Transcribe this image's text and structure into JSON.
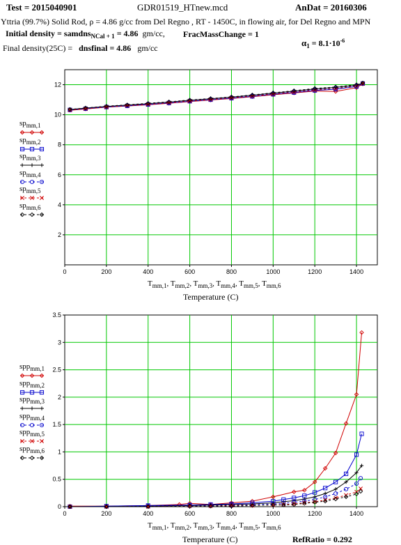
{
  "header": {
    "test_label": "Test = 2015040901",
    "file_name": "GDR01519_HTnew.mcd",
    "an_dat_label": "AnDat = 20160306",
    "description": "Yttria (99.7%) Solid Rod, ρ = 4.86 g/cc from Del Regno , RT - 1450C, in flowing air, for Del Regno and MPN",
    "initial_density_prefix": "Initial density = ",
    "initial_density_var": "samdns",
    "initial_density_sub": "NCal + 1",
    "initial_density_value": " = 4.86",
    "initial_density_unit": "gm/cc,",
    "frac_mass_change": "FracMassChange = 1",
    "final_density_prefix": "Final density(25C) = ",
    "final_density_var": "dnsfinal",
    "final_density_value": " = 4.86",
    "final_density_unit": "gm/cc",
    "alpha_label": "α",
    "alpha_sub": "1",
    "alpha_value": " = 8.1·10",
    "alpha_exp": "-6"
  },
  "footer": {
    "ref_ratio": "RefRatio = 0.292"
  },
  "chart_data": [
    {
      "type": "line",
      "xlabel": "Temperature (C)",
      "x_axis_expr": "T_mm,1, T_mm,2, T_mm,3, T_mm,4, T_mm,5, T_mm,6",
      "xlim": [
        0,
        1500
      ],
      "ylim": [
        0,
        13
      ],
      "xticks": [
        0,
        200,
        400,
        600,
        800,
        1000,
        1200,
        1400
      ],
      "yticks": [
        2,
        4,
        6,
        8,
        10,
        12
      ],
      "grid": true,
      "legend_position": "left",
      "series": [
        {
          "name": "sp mm,1",
          "color": "#d00000",
          "marker": "diamond",
          "dash": "",
          "x": [
            25,
            100,
            200,
            300,
            400,
            500,
            600,
            700,
            800,
            900,
            1000,
            1100,
            1200,
            1300,
            1400,
            1430
          ],
          "y": [
            10.3,
            10.38,
            10.5,
            10.58,
            10.66,
            10.76,
            10.88,
            10.98,
            11.08,
            11.2,
            11.33,
            11.45,
            11.58,
            11.55,
            11.8,
            12.05
          ]
        },
        {
          "name": "sp mm,2",
          "color": "#0000cc",
          "marker": "square",
          "dash": "",
          "x": [
            25,
            100,
            200,
            300,
            400,
            500,
            600,
            700,
            800,
            900,
            1000,
            1100,
            1200,
            1300,
            1400,
            1430
          ],
          "y": [
            10.32,
            10.4,
            10.51,
            10.59,
            10.68,
            10.78,
            10.9,
            11.0,
            11.1,
            11.22,
            11.36,
            11.48,
            11.62,
            11.7,
            11.88,
            12.08
          ]
        },
        {
          "name": "sp mm,3",
          "color": "#000000",
          "marker": "plus",
          "dash": "",
          "x": [
            25,
            100,
            200,
            300,
            400,
            500,
            600,
            700,
            800,
            900,
            1000,
            1100,
            1200,
            1300,
            1400,
            1430
          ],
          "y": [
            10.35,
            10.44,
            10.55,
            10.64,
            10.74,
            10.84,
            10.96,
            11.06,
            11.17,
            11.3,
            11.44,
            11.57,
            11.72,
            11.82,
            11.97,
            12.1
          ]
        },
        {
          "name": "sp mm,4",
          "color": "#0000cc",
          "marker": "circle",
          "dash": "3,3",
          "x": [
            25,
            100,
            200,
            300,
            400,
            500,
            600,
            700,
            800,
            900,
            1000,
            1100,
            1200,
            1300,
            1400,
            1430
          ],
          "y": [
            10.33,
            10.42,
            10.53,
            10.62,
            10.71,
            10.81,
            10.93,
            11.03,
            11.14,
            11.26,
            11.4,
            11.53,
            11.67,
            11.76,
            11.93,
            12.09
          ]
        },
        {
          "name": "sp mm,5",
          "color": "#d00000",
          "marker": "x",
          "dash": "3,3",
          "x": [
            25,
            100,
            200,
            300,
            400,
            500,
            600,
            700,
            800,
            900,
            1000,
            1100,
            1200,
            1300,
            1400,
            1430
          ],
          "y": [
            10.31,
            10.39,
            10.5,
            10.6,
            10.69,
            10.79,
            10.91,
            11.01,
            11.12,
            11.24,
            11.38,
            11.51,
            11.65,
            11.74,
            11.91,
            12.07
          ]
        },
        {
          "name": "sp mm,6",
          "color": "#000000",
          "marker": "diamond",
          "dash": "3,3",
          "x": [
            25,
            100,
            200,
            300,
            400,
            500,
            600,
            700,
            800,
            900,
            1000,
            1100,
            1200,
            1300,
            1400,
            1430
          ],
          "y": [
            10.36,
            10.45,
            10.57,
            10.66,
            10.76,
            10.86,
            10.98,
            11.08,
            11.19,
            11.32,
            11.46,
            11.6,
            11.75,
            11.85,
            12.0,
            12.12
          ]
        }
      ]
    },
    {
      "type": "line",
      "xlabel": "Temperature (C)",
      "x_axis_expr": "T_mm,1, T_mm,2, T_mm,3, T_mm,4, T_mm,5, T_mm,6",
      "xlim": [
        0,
        1500
      ],
      "ylim": [
        0,
        3.5
      ],
      "xticks": [
        0,
        200,
        400,
        600,
        800,
        1000,
        1200,
        1400
      ],
      "yticks": [
        0,
        0.5,
        1,
        1.5,
        2,
        2.5,
        3,
        3.5
      ],
      "grid": true,
      "legend_position": "left",
      "series": [
        {
          "name": "spp mm,1",
          "color": "#d00000",
          "marker": "diamond",
          "dash": "",
          "x": [
            25,
            200,
            400,
            550,
            600,
            700,
            800,
            900,
            1000,
            1100,
            1150,
            1200,
            1250,
            1300,
            1350,
            1400,
            1425
          ],
          "y": [
            0.01,
            0.01,
            0.02,
            0.04,
            0.06,
            0.04,
            0.07,
            0.1,
            0.18,
            0.27,
            0.3,
            0.45,
            0.7,
            0.98,
            1.52,
            2.05,
            3.18
          ]
        },
        {
          "name": "spp mm,2",
          "color": "#0000cc",
          "marker": "square",
          "dash": "",
          "x": [
            25,
            200,
            400,
            600,
            700,
            800,
            900,
            1000,
            1050,
            1100,
            1150,
            1200,
            1250,
            1300,
            1350,
            1400,
            1425
          ],
          "y": [
            0.0,
            0.01,
            0.02,
            0.03,
            0.04,
            0.05,
            0.07,
            0.1,
            0.13,
            0.16,
            0.2,
            0.26,
            0.34,
            0.45,
            0.6,
            0.95,
            1.33
          ]
        },
        {
          "name": "spp mm,3",
          "color": "#000000",
          "marker": "plus",
          "dash": "",
          "x": [
            25,
            200,
            400,
            600,
            700,
            800,
            900,
            1000,
            1050,
            1100,
            1150,
            1200,
            1250,
            1300,
            1350,
            1400,
            1425
          ],
          "y": [
            0.0,
            0.0,
            0.01,
            0.02,
            0.03,
            0.04,
            0.05,
            0.07,
            0.09,
            0.11,
            0.14,
            0.18,
            0.24,
            0.32,
            0.45,
            0.62,
            0.75
          ]
        },
        {
          "name": "spp mm,4",
          "color": "#0000cc",
          "marker": "circle",
          "dash": "3,3",
          "x": [
            25,
            200,
            400,
            600,
            700,
            800,
            900,
            1000,
            1050,
            1100,
            1150,
            1200,
            1250,
            1300,
            1350,
            1400,
            1420
          ],
          "y": [
            0.0,
            0.0,
            0.01,
            0.02,
            0.02,
            0.03,
            0.04,
            0.05,
            0.06,
            0.08,
            0.1,
            0.13,
            0.18,
            0.24,
            0.32,
            0.42,
            0.52
          ]
        },
        {
          "name": "spp mm,5",
          "color": "#d00000",
          "marker": "x",
          "dash": "3,3",
          "x": [
            25,
            200,
            400,
            600,
            700,
            800,
            900,
            1000,
            1050,
            1100,
            1150,
            1200,
            1250,
            1300,
            1350,
            1400,
            1420
          ],
          "y": [
            0.0,
            0.0,
            0.0,
            0.01,
            0.01,
            0.02,
            0.02,
            0.03,
            0.04,
            0.05,
            0.07,
            0.09,
            0.12,
            0.16,
            0.21,
            0.27,
            0.33
          ]
        },
        {
          "name": "spp mm,6",
          "color": "#000000",
          "marker": "diamond",
          "dash": "3,3",
          "x": [
            25,
            200,
            400,
            600,
            700,
            800,
            900,
            1000,
            1050,
            1100,
            1150,
            1200,
            1250,
            1300,
            1350,
            1400,
            1420
          ],
          "y": [
            0.0,
            0.0,
            0.0,
            0.01,
            0.01,
            0.01,
            0.02,
            0.03,
            0.03,
            0.04,
            0.06,
            0.08,
            0.1,
            0.14,
            0.18,
            0.23,
            0.28
          ]
        }
      ]
    }
  ]
}
